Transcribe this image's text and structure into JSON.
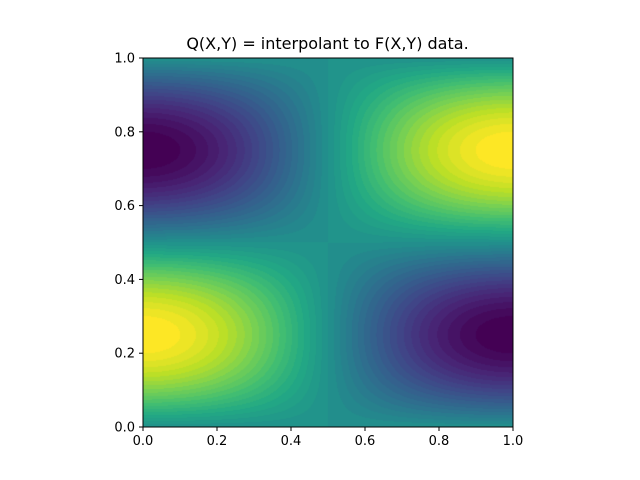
{
  "chart_data": {
    "type": "heatmap",
    "title": "Q(X,Y) = interpolant to F(X,Y) data.",
    "xlabel": "",
    "ylabel": "",
    "xlim": [
      0.0,
      1.0
    ],
    "ylim": [
      0.0,
      1.0
    ],
    "x_ticks": [
      "0.0",
      "0.2",
      "0.4",
      "0.6",
      "0.8",
      "1.0"
    ],
    "y_ticks": [
      "0.0",
      "0.2",
      "0.4",
      "0.6",
      "0.8",
      "1.0"
    ],
    "grid": false,
    "colormap": "viridis",
    "function": "sin(pi*x + pi/2) * sin(2*pi*y)",
    "contour_levels": 40,
    "value_range": [
      -1.0,
      1.0
    ],
    "extrema": [
      {
        "x": 0.0,
        "y": 0.25,
        "value": 1.0,
        "kind": "max"
      },
      {
        "x": 1.0,
        "y": 0.75,
        "value": 1.0,
        "kind": "max"
      },
      {
        "x": 0.0,
        "y": 0.75,
        "value": -1.0,
        "kind": "min"
      },
      {
        "x": 1.0,
        "y": 0.25,
        "value": -1.0,
        "kind": "min"
      }
    ],
    "colors": {
      "low": "#440154",
      "mid": "#21918c",
      "high": "#fde725"
    }
  }
}
